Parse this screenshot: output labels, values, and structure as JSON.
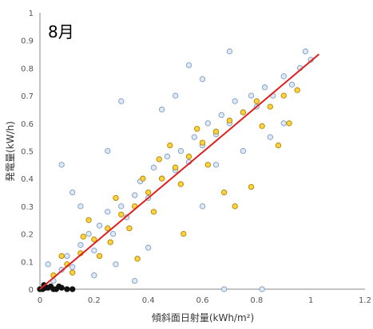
{
  "chart_data": {
    "type": "scatter",
    "title": "",
    "panel_label": "8月",
    "xlabel": "傾斜面日射量(kWh/m²)",
    "ylabel": "発電量(kW/h)",
    "xlim": [
      0,
      1.2
    ],
    "ylim": [
      0,
      1
    ],
    "xticks": [
      "0",
      "0.2",
      "0.4",
      "0.6",
      "0.8",
      "1",
      "1.2"
    ],
    "yticks": [
      "0",
      "0.1",
      "0.2",
      "0.3",
      "0.4",
      "0.5",
      "0.6",
      "0.7",
      "0.8",
      "0.9",
      "1"
    ],
    "grid": false,
    "colors": {
      "series_blue_fill": "#dfe9f5",
      "series_blue_stroke": "#7d9cc3",
      "series_yellow_fill": "#ffd23f",
      "series_yellow_stroke": "#b08400",
      "series_black": "#111111",
      "fit_line": "#e02020"
    },
    "series": [
      {
        "points": [
          [
            0.05,
            0.03
          ],
          [
            0.08,
            0.07
          ],
          [
            0.1,
            0.12
          ],
          [
            0.12,
            0.08
          ],
          [
            0.15,
            0.16
          ],
          [
            0.18,
            0.2
          ],
          [
            0.2,
            0.14
          ],
          [
            0.22,
            0.23
          ],
          [
            0.25,
            0.28
          ],
          [
            0.27,
            0.2
          ],
          [
            0.3,
            0.3
          ],
          [
            0.32,
            0.26
          ],
          [
            0.35,
            0.34
          ],
          [
            0.37,
            0.39
          ],
          [
            0.4,
            0.33
          ],
          [
            0.42,
            0.44
          ],
          [
            0.45,
            0.4
          ],
          [
            0.47,
            0.48
          ],
          [
            0.5,
            0.43
          ],
          [
            0.52,
            0.5
          ],
          [
            0.55,
            0.46
          ],
          [
            0.57,
            0.55
          ],
          [
            0.6,
            0.52
          ],
          [
            0.62,
            0.6
          ],
          [
            0.65,
            0.56
          ],
          [
            0.67,
            0.63
          ],
          [
            0.7,
            0.6
          ],
          [
            0.72,
            0.68
          ],
          [
            0.75,
            0.64
          ],
          [
            0.78,
            0.7
          ],
          [
            0.8,
            0.66
          ],
          [
            0.83,
            0.73
          ],
          [
            0.86,
            0.7
          ],
          [
            0.9,
            0.77
          ],
          [
            0.93,
            0.74
          ],
          [
            0.96,
            0.8
          ],
          [
            1.0,
            0.83
          ],
          [
            0.12,
            0.35
          ],
          [
            0.08,
            0.45
          ],
          [
            0.2,
            0.05
          ],
          [
            0.3,
            0.68
          ],
          [
            0.35,
            0.03
          ],
          [
            0.55,
            0.81
          ],
          [
            0.68,
            0.0
          ],
          [
            0.82,
            0.0
          ],
          [
            0.25,
            0.5
          ],
          [
            0.45,
            0.65
          ],
          [
            0.6,
            0.3
          ],
          [
            0.7,
            0.86
          ],
          [
            0.9,
            0.6
          ],
          [
            0.4,
            0.15
          ],
          [
            0.15,
            0.3
          ],
          [
            0.5,
            0.7
          ],
          [
            0.65,
            0.45
          ],
          [
            0.75,
            0.5
          ],
          [
            0.85,
            0.55
          ],
          [
            0.98,
            0.86
          ],
          [
            0.02,
            0.01
          ],
          [
            0.03,
            0.09
          ],
          [
            0.6,
            0.76
          ],
          [
            0.28,
            0.09
          ]
        ]
      },
      {
        "points": [
          [
            0.05,
            0.05
          ],
          [
            0.1,
            0.09
          ],
          [
            0.15,
            0.13
          ],
          [
            0.2,
            0.18
          ],
          [
            0.25,
            0.22
          ],
          [
            0.3,
            0.27
          ],
          [
            0.35,
            0.3
          ],
          [
            0.4,
            0.35
          ],
          [
            0.45,
            0.4
          ],
          [
            0.5,
            0.44
          ],
          [
            0.55,
            0.48
          ],
          [
            0.6,
            0.53
          ],
          [
            0.65,
            0.57
          ],
          [
            0.7,
            0.61
          ],
          [
            0.75,
            0.64
          ],
          [
            0.8,
            0.68
          ],
          [
            0.85,
            0.66
          ],
          [
            0.9,
            0.7
          ],
          [
            0.95,
            0.72
          ],
          [
            0.08,
            0.12
          ],
          [
            0.12,
            0.06
          ],
          [
            0.18,
            0.25
          ],
          [
            0.22,
            0.12
          ],
          [
            0.28,
            0.33
          ],
          [
            0.33,
            0.22
          ],
          [
            0.38,
            0.4
          ],
          [
            0.42,
            0.28
          ],
          [
            0.48,
            0.52
          ],
          [
            0.52,
            0.38
          ],
          [
            0.58,
            0.58
          ],
          [
            0.62,
            0.45
          ],
          [
            0.68,
            0.35
          ],
          [
            0.72,
            0.3
          ],
          [
            0.78,
            0.37
          ],
          [
            0.82,
            0.59
          ],
          [
            0.88,
            0.52
          ],
          [
            0.92,
            0.6
          ],
          [
            0.44,
            0.47
          ],
          [
            0.16,
            0.19
          ],
          [
            0.26,
            0.17
          ],
          [
            0.36,
            0.11
          ],
          [
            0.53,
            0.2
          ]
        ]
      },
      {
        "points": [
          [
            0.0,
            0.0
          ],
          [
            0.01,
            0.0
          ],
          [
            0.02,
            0.005
          ],
          [
            0.03,
            0.005
          ],
          [
            0.04,
            0.01
          ],
          [
            0.05,
            0.0
          ],
          [
            0.06,
            0.0
          ],
          [
            0.07,
            0.01
          ],
          [
            0.08,
            0.005
          ],
          [
            0.1,
            0.0
          ],
          [
            0.12,
            0.0
          ],
          [
            0.015,
            0.015
          ]
        ]
      }
    ],
    "fit_line": {
      "x": [
        0.0,
        1.03
      ],
      "y": [
        0.0,
        0.85
      ]
    }
  }
}
